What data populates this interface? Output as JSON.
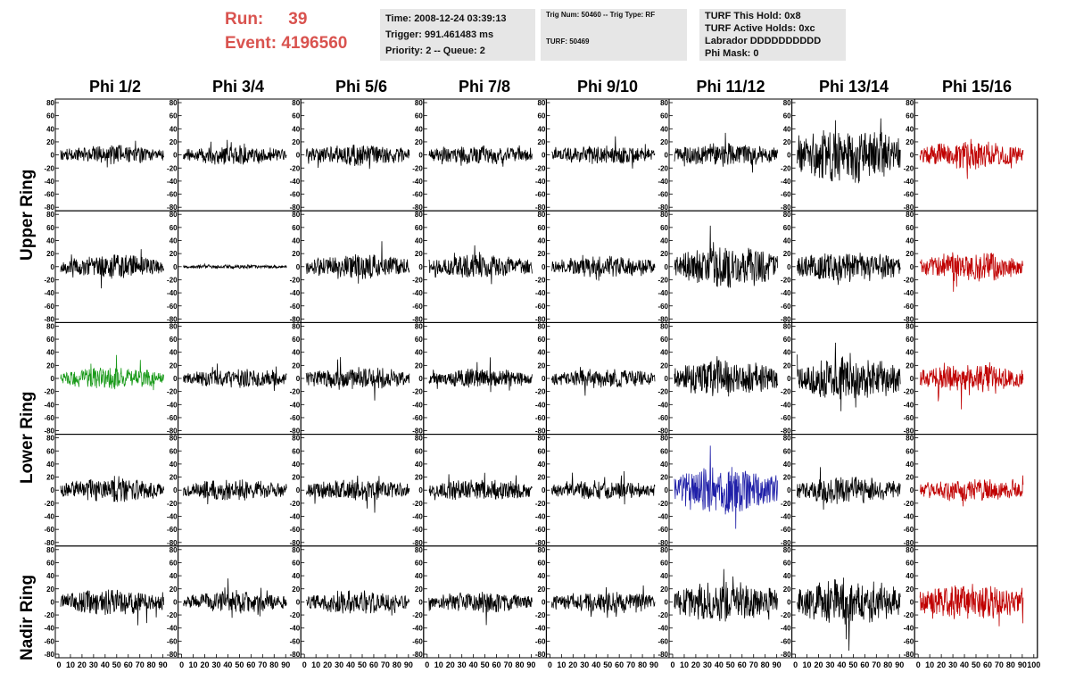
{
  "header": {
    "run_label": "Run:",
    "run_value": "39",
    "event_label": "Event:",
    "event_value": "4196560",
    "time": "Time: 2008-12-24 03:39:13",
    "trigger": "Trigger: 991.461483 ms",
    "priority": "Priority: 2 -- Queue: 2",
    "trig_num": "Trig Num: 50460 -- Trig Type: RF",
    "turf": "TURF: 50469",
    "turf_hold": "TURF This Hold: 0x8",
    "turf_active": "TURF Active Holds: 0xc",
    "labrador": "Labrador DDDDDDDDDD",
    "phi_mask": "Phi Mask: 0"
  },
  "colors": {
    "header_red": "#d9534f",
    "trace_default": "#000000",
    "trace_red": "#c00000",
    "trace_green": "#1a9a1a",
    "trace_blue": "#1f1fa8",
    "info_bg": "#e6e6e6"
  },
  "chart_data": {
    "type": "line",
    "columns": [
      "Phi 1/2",
      "Phi 3/4",
      "Phi 5/6",
      "Phi 7/8",
      "Phi 9/10",
      "Phi 11/12",
      "Phi 13/14",
      "Phi 15/16"
    ],
    "row_labels": [
      "Upper Ring",
      "Lower Ring",
      "Nadir Ring"
    ],
    "ylim": [
      -80,
      80
    ],
    "yticks": [
      -80,
      -60,
      -40,
      -20,
      0,
      20,
      40,
      60,
      80
    ],
    "xlim": [
      0,
      100
    ],
    "x_tick_labels": [
      "0",
      "10",
      "20",
      "30",
      "40",
      "50",
      "60",
      "70",
      "80",
      "90",
      "100"
    ],
    "grid": false,
    "panels": [
      [
        {
          "amp": 9,
          "color": "black",
          "seed": 11
        },
        {
          "amp": 9,
          "color": "black",
          "seed": 12
        },
        {
          "amp": 10,
          "color": "black",
          "seed": 13
        },
        {
          "amp": 9,
          "color": "black",
          "seed": 14
        },
        {
          "amp": 9,
          "color": "black",
          "seed": 15
        },
        {
          "amp": 11,
          "color": "black",
          "seed": 16
        },
        {
          "amp": 26,
          "color": "black",
          "seed": 17
        },
        {
          "amp": 13,
          "color": "red",
          "seed": 18
        }
      ],
      [
        {
          "amp": 11,
          "color": "black",
          "seed": 21
        },
        {
          "amp": 2,
          "color": "black",
          "seed": 22
        },
        {
          "amp": 12,
          "color": "black",
          "seed": 23
        },
        {
          "amp": 11,
          "color": "black",
          "seed": 24
        },
        {
          "amp": 10,
          "color": "black",
          "seed": 25
        },
        {
          "amp": 19,
          "color": "black",
          "seed": 26
        },
        {
          "amp": 15,
          "color": "black",
          "seed": 27
        },
        {
          "amp": 14,
          "color": "red",
          "seed": 28
        }
      ],
      [
        {
          "amp": 10,
          "color": "green",
          "seed": 31
        },
        {
          "amp": 9,
          "color": "black",
          "seed": 32
        },
        {
          "amp": 11,
          "color": "black",
          "seed": 33
        },
        {
          "amp": 9,
          "color": "black",
          "seed": 34
        },
        {
          "amp": 9,
          "color": "black",
          "seed": 35
        },
        {
          "amp": 17,
          "color": "black",
          "seed": 36
        },
        {
          "amp": 20,
          "color": "black",
          "seed": 37
        },
        {
          "amp": 13,
          "color": "red",
          "seed": 38
        }
      ],
      [
        {
          "amp": 11,
          "color": "black",
          "seed": 41
        },
        {
          "amp": 10,
          "color": "black",
          "seed": 42
        },
        {
          "amp": 10,
          "color": "black",
          "seed": 43
        },
        {
          "amp": 10,
          "color": "black",
          "seed": 44
        },
        {
          "amp": 9,
          "color": "black",
          "seed": 45
        },
        {
          "amp": 22,
          "color": "blue",
          "seed": 46
        },
        {
          "amp": 13,
          "color": "black",
          "seed": 47
        },
        {
          "amp": 11,
          "color": "red",
          "seed": 48
        }
      ],
      [
        {
          "amp": 12,
          "color": "black",
          "seed": 51
        },
        {
          "amp": 10,
          "color": "black",
          "seed": 52
        },
        {
          "amp": 11,
          "color": "black",
          "seed": 53
        },
        {
          "amp": 10,
          "color": "black",
          "seed": 54
        },
        {
          "amp": 10,
          "color": "black",
          "seed": 55
        },
        {
          "amp": 19,
          "color": "black",
          "seed": 56
        },
        {
          "amp": 22,
          "color": "black",
          "seed": 57
        },
        {
          "amp": 17,
          "color": "red",
          "seed": 58
        }
      ]
    ]
  }
}
